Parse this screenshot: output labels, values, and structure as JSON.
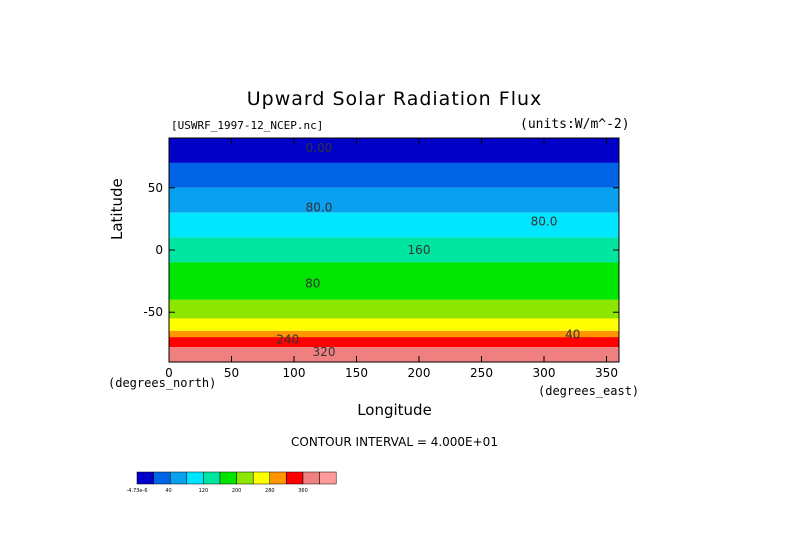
{
  "chart_data": {
    "type": "heatmap",
    "title": "Upward Solar Radiation Flux",
    "source": "[USWRF_1997-12_NCEP.nc]",
    "units": "(units:W/m^-2)",
    "xlabel": "Longitude",
    "ylabel": "Latitude",
    "x_unit_note": "(degrees_east)",
    "y_unit_note": "(degrees_north)",
    "xlim": [
      0,
      360
    ],
    "ylim": [
      -90,
      90
    ],
    "x_ticks": [
      0,
      50,
      100,
      150,
      200,
      250,
      300,
      350
    ],
    "y_ticks": [
      50,
      0,
      -50
    ],
    "contour_interval_text": "CONTOUR INTERVAL = 4.000E+01",
    "contour_labels": [
      "0.00",
      "80.0",
      "80.0",
      "160",
      "80",
      "240",
      "320",
      "40"
    ],
    "levels": [
      -40,
      0,
      40,
      80,
      120,
      160,
      200,
      240,
      280,
      320,
      360,
      400
    ],
    "colorbar_labels": [
      "-4.73e-6",
      "40",
      "120",
      "200",
      "280",
      "360"
    ],
    "colors": [
      "#0000c8",
      "#0064e6",
      "#0aa0f0",
      "#00e6ff",
      "#00e6a0",
      "#00e600",
      "#8ce600",
      "#ffff00",
      "#ff9600",
      "#ff0000",
      "#f08080",
      "#ff9a9a"
    ],
    "zonal_bands": [
      {
        "lat_top": 90,
        "lat_bottom": 70,
        "value": -20
      },
      {
        "lat_top": 70,
        "lat_bottom": 50,
        "value": 20
      },
      {
        "lat_top": 50,
        "lat_bottom": 30,
        "value": 60
      },
      {
        "lat_top": 30,
        "lat_bottom": 10,
        "value": 100
      },
      {
        "lat_top": 10,
        "lat_bottom": -10,
        "value": 140
      },
      {
        "lat_top": -10,
        "lat_bottom": -40,
        "value": 180
      },
      {
        "lat_top": -40,
        "lat_bottom": -55,
        "value": 220
      },
      {
        "lat_top": -55,
        "lat_bottom": -65,
        "value": 260
      },
      {
        "lat_top": -65,
        "lat_bottom": -70,
        "value": 300
      },
      {
        "lat_top": -70,
        "lat_bottom": -78,
        "value": 340
      },
      {
        "lat_top": -78,
        "lat_bottom": -90,
        "value": 380
      }
    ]
  }
}
